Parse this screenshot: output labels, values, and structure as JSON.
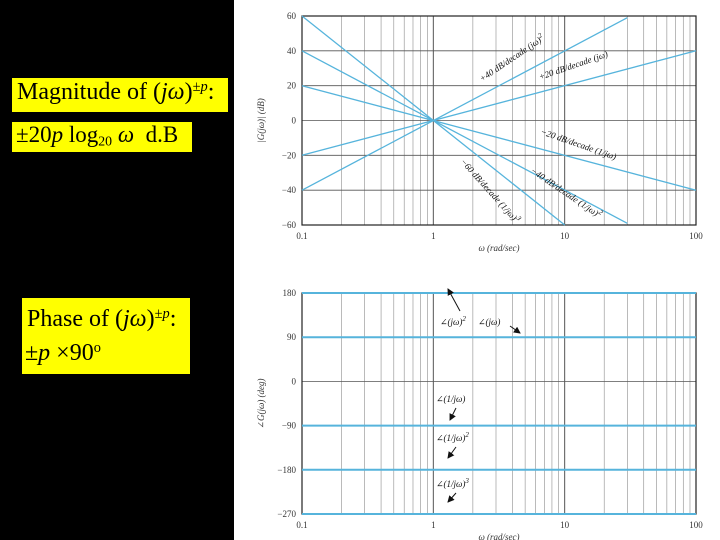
{
  "magnitude_box": {
    "title_prefix": "Magnitude of (",
    "title_var": "jω",
    "title_close": ")",
    "title_sup": "±",
    "title_sup_var": "p",
    "title_colon": ":",
    "formula_pm": "±20",
    "formula_p": "p",
    "formula_log": " log",
    "formula_log_sub": "20",
    "formula_omega": "ω",
    "formula_unit": "d.B"
  },
  "phase_box": {
    "title_prefix": "Phase of (",
    "title_var": "jω",
    "title_close": ")",
    "title_sup": "±",
    "title_sup_var": "p",
    "title_colon": ":",
    "formula_pm": "±",
    "formula_p": "p",
    "formula_times": " ×90",
    "formula_deg": "o"
  },
  "colors": {
    "background": "#000000",
    "highlight": "#ffff00",
    "curve": "#56b4dc",
    "grid": "#8c8c8c",
    "axis_text": "#333333"
  },
  "chart_data": [
    {
      "type": "line",
      "xscale": "log",
      "xlim": [
        0.1,
        100
      ],
      "ylim": [
        -60,
        60
      ],
      "xticks": [
        "0.1",
        "1",
        "10",
        "100"
      ],
      "yticks": [
        "60",
        "40",
        "20",
        "0",
        "−20",
        "−40",
        "−60"
      ],
      "xlabel": "ω (rad/sec)",
      "ylabel": "|G(jω)| (dB)",
      "grid": true,
      "series": [
        {
          "name": "+40 dB/decade (jω)²",
          "x": [
            0.1,
            30
          ],
          "y": [
            -40,
            59
          ]
        },
        {
          "name": "+20 dB/decade (jω)",
          "x": [
            0.1,
            100
          ],
          "y": [
            -20,
            40
          ]
        },
        {
          "name": "−20 dB/decade (1/jω)",
          "x": [
            0.1,
            100
          ],
          "y": [
            20,
            -40
          ]
        },
        {
          "name": "−40 dB/decade (1/jω)²",
          "x": [
            0.1,
            30
          ],
          "y": [
            40,
            -59
          ]
        },
        {
          "name": "−60 dB/decade (1/jω)³",
          "x": [
            0.1,
            10
          ],
          "y": [
            60,
            -60
          ]
        }
      ],
      "annotations": [
        {
          "text": "+40 dB/decade (jω)",
          "sup": "2"
        },
        {
          "text": "+20 dB/decade (jω)",
          "sup": ""
        },
        {
          "text": "−20 dB/decade (1/jω)",
          "sup": ""
        },
        {
          "text": "−40 dB/decade (1/jω)",
          "sup": "2"
        },
        {
          "text": "−60 dB/decade (1/jω)",
          "sup": "3"
        }
      ]
    },
    {
      "type": "line",
      "xscale": "log",
      "xlim": [
        0.1,
        100
      ],
      "ylim": [
        -270,
        180
      ],
      "xticks": [
        "0.1",
        "1",
        "10",
        "100"
      ],
      "yticks": [
        "180",
        "90",
        "0",
        "−90",
        "−180",
        "−270"
      ],
      "xlabel": "ω (rad/sec)",
      "ylabel": "∠G(jω) (deg)",
      "grid": true,
      "series": [
        {
          "name": "∠(jω)²",
          "x": [
            0.1,
            100
          ],
          "y": [
            180,
            180
          ]
        },
        {
          "name": "∠(jω)",
          "x": [
            0.1,
            100
          ],
          "y": [
            90,
            90
          ]
        },
        {
          "name": "∠(1/jω)",
          "x": [
            0.1,
            100
          ],
          "y": [
            -90,
            -90
          ]
        },
        {
          "name": "∠(1/jω)²",
          "x": [
            0.1,
            100
          ],
          "y": [
            -180,
            -180
          ]
        },
        {
          "name": "∠(1/jω)³",
          "x": [
            0.1,
            100
          ],
          "y": [
            -270,
            -270
          ]
        }
      ],
      "annotations": [
        {
          "text": "∠(jω)",
          "sup": "2"
        },
        {
          "text": "∠(jω)",
          "sup": ""
        },
        {
          "text": "∠(1/jω)",
          "sup": ""
        },
        {
          "text": "∠(1/jω)",
          "sup": "2"
        },
        {
          "text": "∠(1/jω)",
          "sup": "3"
        }
      ]
    }
  ]
}
